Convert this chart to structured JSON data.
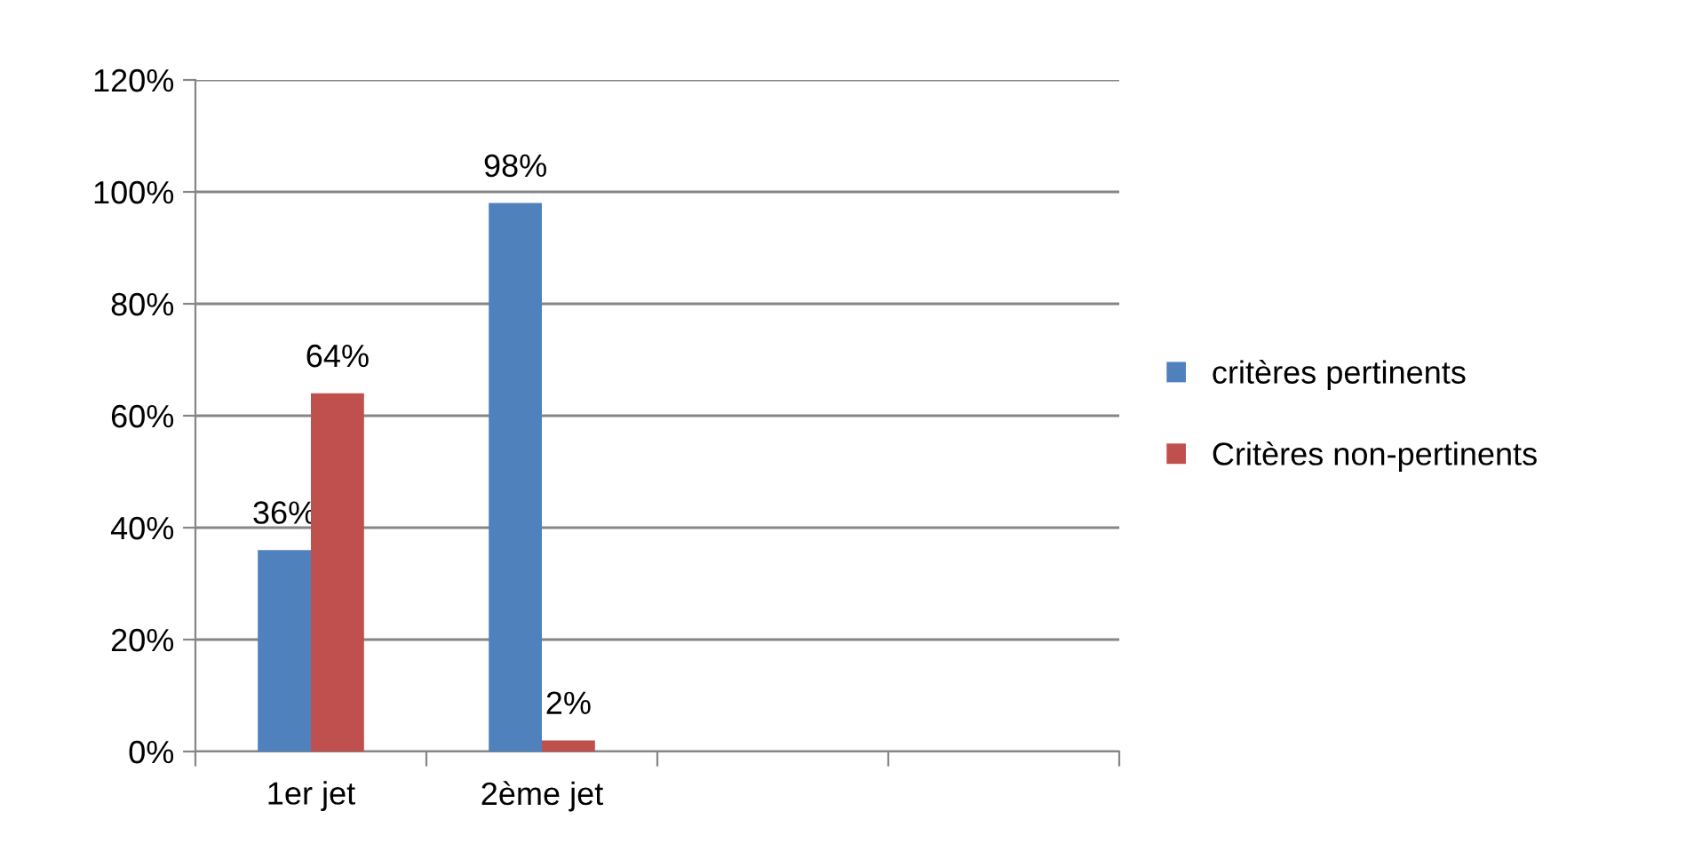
{
  "chart_data": {
    "type": "bar",
    "categories": [
      "1er jet",
      "2ème jet",
      null,
      null
    ],
    "series": [
      {
        "name": "critères pertinents",
        "color": "#4f81bd",
        "values": [
          36,
          98,
          null,
          null
        ],
        "value_labels": [
          "36%",
          "98%",
          null,
          null
        ]
      },
      {
        "name": "Critères non-pertinents",
        "color": "#c0504d",
        "values": [
          64,
          2,
          null,
          null
        ],
        "value_labels": [
          "64%",
          "2%",
          null,
          null
        ]
      }
    ],
    "ylim": [
      0,
      120
    ],
    "yticks": [
      {
        "value": 0,
        "label": "0%"
      },
      {
        "value": 20,
        "label": "20%"
      },
      {
        "value": 40,
        "label": "40%"
      },
      {
        "value": 60,
        "label": "60%"
      },
      {
        "value": 80,
        "label": "80%"
      },
      {
        "value": 100,
        "label": "100%"
      },
      {
        "value": 120,
        "label": "120%"
      }
    ],
    "grid": "y",
    "legend": "right"
  }
}
